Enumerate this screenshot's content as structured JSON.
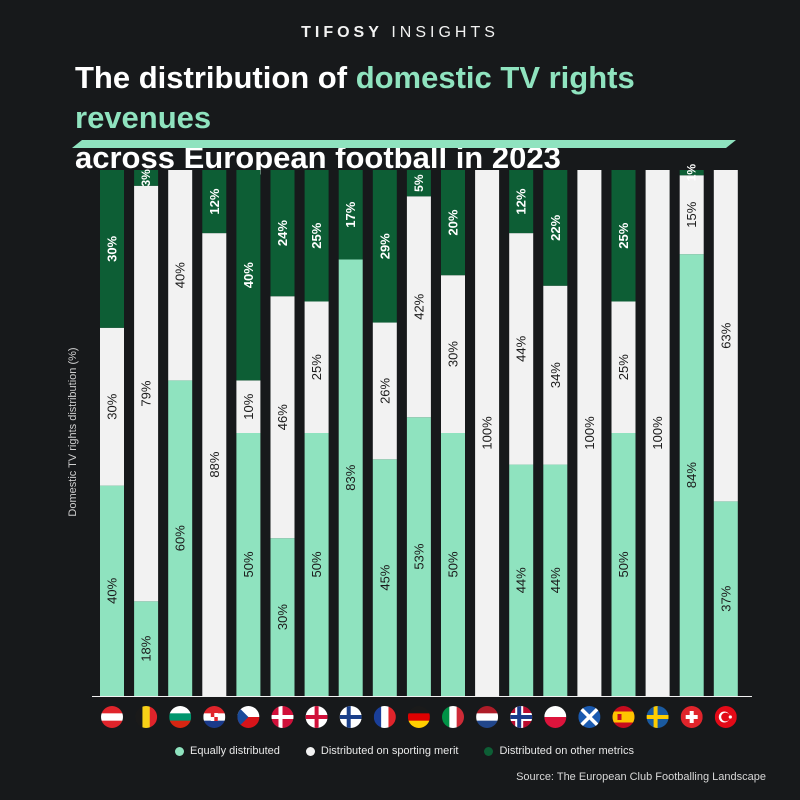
{
  "header": {
    "brand_bold": "TIFOSY",
    "brand_light": "INSIGHTS",
    "title_part1": "The distribution of ",
    "title_highlight": "domestic TV rights revenues",
    "title_part2": "across European football in 2023"
  },
  "colors": {
    "background": "#17191b",
    "equal": "#8fe3bf",
    "merit": "#f2f2f2",
    "other": "#0d5e35",
    "accent": "#8fe3bf"
  },
  "chart_data": {
    "type": "bar",
    "stacked": true,
    "title": "The distribution of domestic TV rights revenues across European football in 2023",
    "ylabel": "Domestic TV rights distribution (%)",
    "ylim": [
      0,
      100
    ],
    "grid": false,
    "legend_position": "bottom",
    "countries": [
      "Austria",
      "Belgium",
      "Bulgaria",
      "Croatia",
      "Czech Republic",
      "Denmark",
      "England",
      "Finland",
      "France",
      "Germany",
      "Italy",
      "Netherlands",
      "Norway",
      "Poland",
      "Scotland",
      "Spain",
      "Sweden",
      "Switzerland",
      "Turkey"
    ],
    "series": [
      {
        "name": "Equally distributed",
        "values": [
          40,
          18,
          60,
          0,
          50,
          30,
          50,
          83,
          45,
          53,
          50,
          0,
          44,
          44,
          0,
          50,
          0,
          84,
          37
        ]
      },
      {
        "name": "Distributed on sporting merit",
        "values": [
          30,
          79,
          40,
          88,
          10,
          46,
          25,
          0,
          26,
          42,
          30,
          100,
          44,
          34,
          100,
          25,
          100,
          15,
          63
        ]
      },
      {
        "name": "Distributed on other metrics",
        "values": [
          30,
          3,
          0,
          12,
          40,
          24,
          25,
          17,
          29,
          5,
          20,
          0,
          12,
          22,
          0,
          25,
          0,
          1,
          0
        ]
      }
    ]
  },
  "flag_icons": [
    "austria-flag-icon",
    "belgium-flag-icon",
    "bulgaria-flag-icon",
    "croatia-flag-icon",
    "czech-flag-icon",
    "denmark-flag-icon",
    "england-flag-icon",
    "finland-flag-icon",
    "france-flag-icon",
    "germany-flag-icon",
    "italy-flag-icon",
    "netherlands-flag-icon",
    "norway-flag-icon",
    "poland-flag-icon",
    "scotland-flag-icon",
    "spain-flag-icon",
    "sweden-flag-icon",
    "switzerland-flag-icon",
    "turkey-flag-icon"
  ],
  "legend": {
    "equal": "Equally distributed",
    "merit": "Distributed on sporting merit",
    "other": "Distributed on other metrics"
  },
  "source": "Source: The European Club Footballing Landscape"
}
